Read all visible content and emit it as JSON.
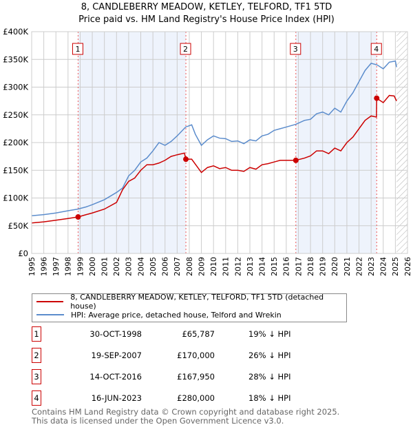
{
  "chart_data": {
    "type": "line",
    "title": "8, CANDLEBERRY MEADOW, KETLEY, TELFORD, TF1 5TD",
    "subtitle": "Price paid vs. HM Land Registry's House Price Index (HPI)",
    "xlim": [
      1995,
      2026
    ],
    "ylim": [
      0,
      400000
    ],
    "x_ticks": [
      "1995",
      "1996",
      "1997",
      "1998",
      "1999",
      "2000",
      "2001",
      "2002",
      "2003",
      "2004",
      "2005",
      "2006",
      "2007",
      "2008",
      "2009",
      "2010",
      "2011",
      "2012",
      "2013",
      "2014",
      "2015",
      "2016",
      "2017",
      "2018",
      "2019",
      "2020",
      "2021",
      "2022",
      "2023",
      "2024",
      "2025",
      "2026"
    ],
    "y_ticks": [
      {
        "v": 0,
        "label": "£0"
      },
      {
        "v": 50000,
        "label": "£50K"
      },
      {
        "v": 100000,
        "label": "£100K"
      },
      {
        "v": 150000,
        "label": "£150K"
      },
      {
        "v": 200000,
        "label": "£200K"
      },
      {
        "v": 250000,
        "label": "£250K"
      },
      {
        "v": 300000,
        "label": "£300K"
      },
      {
        "v": 350000,
        "label": "£350K"
      },
      {
        "v": 400000,
        "label": "£400K"
      }
    ],
    "forecast_start": 2025.1,
    "series": [
      {
        "name": "8, CANDLEBERRY MEADOW, KETLEY, TELFORD, TF1 5TD (detached house)",
        "color": "#cc0000",
        "points": [
          [
            1995,
            55
          ],
          [
            1996,
            57
          ],
          [
            1997,
            60
          ],
          [
            1998,
            63
          ],
          [
            1998.83,
            65.8
          ],
          [
            1999.5,
            70
          ],
          [
            2000,
            73
          ],
          [
            2001,
            80
          ],
          [
            2002,
            92
          ],
          [
            2002.5,
            115
          ],
          [
            2003,
            130
          ],
          [
            2003.5,
            136
          ],
          [
            2004,
            150
          ],
          [
            2004.5,
            160
          ],
          [
            2005,
            160
          ],
          [
            2005.5,
            163
          ],
          [
            2006,
            168
          ],
          [
            2006.5,
            175
          ],
          [
            2007,
            178
          ],
          [
            2007.6,
            181
          ],
          [
            2007.72,
            170
          ],
          [
            2008.2,
            170
          ],
          [
            2008.7,
            155
          ],
          [
            2009,
            146
          ],
          [
            2009.5,
            155
          ],
          [
            2010,
            158
          ],
          [
            2010.5,
            153
          ],
          [
            2011,
            155
          ],
          [
            2011.5,
            150
          ],
          [
            2012,
            150
          ],
          [
            2012.5,
            148
          ],
          [
            2013,
            155
          ],
          [
            2013.5,
            152
          ],
          [
            2014,
            160
          ],
          [
            2014.5,
            162
          ],
          [
            2015,
            165
          ],
          [
            2015.5,
            168
          ],
          [
            2016,
            168
          ],
          [
            2016.79,
            168
          ],
          [
            2017.5,
            172
          ],
          [
            2018,
            176
          ],
          [
            2018.5,
            185
          ],
          [
            2019,
            185
          ],
          [
            2019.5,
            180
          ],
          [
            2020,
            190
          ],
          [
            2020.5,
            185
          ],
          [
            2021,
            200
          ],
          [
            2021.5,
            210
          ],
          [
            2022,
            225
          ],
          [
            2022.5,
            240
          ],
          [
            2023,
            248
          ],
          [
            2023.44,
            246
          ],
          [
            2023.46,
            280
          ],
          [
            2024,
            272
          ],
          [
            2024.5,
            285
          ],
          [
            2024.9,
            284
          ],
          [
            2025.1,
            275
          ]
        ]
      },
      {
        "name": "HPI: Average price, detached house, Telford and Wrekin",
        "color": "#5b8ccc",
        "points": [
          [
            1995,
            68
          ],
          [
            1996,
            70
          ],
          [
            1997,
            73
          ],
          [
            1998,
            77
          ],
          [
            1998.8,
            80
          ],
          [
            1999.5,
            84
          ],
          [
            2000,
            88
          ],
          [
            2001,
            97
          ],
          [
            2002,
            110
          ],
          [
            2002.5,
            118
          ],
          [
            2003,
            140
          ],
          [
            2003.5,
            150
          ],
          [
            2004,
            165
          ],
          [
            2004.5,
            172
          ],
          [
            2005,
            185
          ],
          [
            2005.5,
            200
          ],
          [
            2006,
            195
          ],
          [
            2006.5,
            202
          ],
          [
            2007,
            212
          ],
          [
            2007.7,
            228
          ],
          [
            2008.2,
            232
          ],
          [
            2008.5,
            215
          ],
          [
            2009,
            195
          ],
          [
            2009.5,
            205
          ],
          [
            2010,
            212
          ],
          [
            2010.5,
            208
          ],
          [
            2011,
            207
          ],
          [
            2011.5,
            202
          ],
          [
            2012,
            203
          ],
          [
            2012.5,
            198
          ],
          [
            2013,
            205
          ],
          [
            2013.5,
            203
          ],
          [
            2014,
            212
          ],
          [
            2014.5,
            215
          ],
          [
            2015,
            222
          ],
          [
            2015.5,
            225
          ],
          [
            2016,
            228
          ],
          [
            2016.8,
            233
          ],
          [
            2017.5,
            240
          ],
          [
            2018,
            242
          ],
          [
            2018.5,
            252
          ],
          [
            2019,
            255
          ],
          [
            2019.5,
            250
          ],
          [
            2020,
            262
          ],
          [
            2020.5,
            255
          ],
          [
            2021,
            275
          ],
          [
            2021.5,
            290
          ],
          [
            2022,
            310
          ],
          [
            2022.5,
            330
          ],
          [
            2023,
            343
          ],
          [
            2023.5,
            340
          ],
          [
            2024,
            333
          ],
          [
            2024.5,
            345
          ],
          [
            2025,
            347
          ],
          [
            2025.1,
            336
          ]
        ]
      }
    ],
    "sales": [
      {
        "n": "1",
        "x": 1998.83,
        "price": 65787,
        "date": "30-OCT-1998",
        "price_label": "£65,787",
        "hpi": "19% ↓ HPI"
      },
      {
        "n": "2",
        "x": 2007.72,
        "price": 170000,
        "date": "19-SEP-2007",
        "price_label": "£170,000",
        "hpi": "26% ↓ HPI"
      },
      {
        "n": "3",
        "x": 2016.79,
        "price": 167950,
        "date": "14-OCT-2016",
        "price_label": "£167,950",
        "hpi": "28% ↓ HPI"
      },
      {
        "n": "4",
        "x": 2023.46,
        "price": 280000,
        "date": "16-JUN-2023",
        "price_label": "£280,000",
        "hpi": "18% ↓ HPI"
      }
    ]
  },
  "legend": {
    "property": "8, CANDLEBERRY MEADOW, KETLEY, TELFORD, TF1 5TD (detached house)",
    "hpi": "HPI: Average price, detached house, Telford and Wrekin"
  },
  "footer": {
    "line1": "Contains HM Land Registry data © Crown copyright and database right 2025.",
    "line2": "This data is licensed under the Open Government Licence v3.0."
  }
}
